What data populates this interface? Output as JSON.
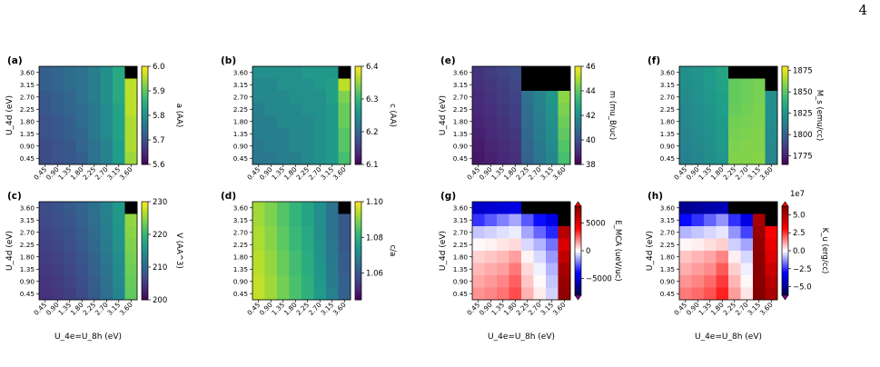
{
  "page_number": "4",
  "x_ticks": [
    "0.45",
    "0.90",
    "1.35",
    "1.80",
    "2.25",
    "2.70",
    "3.15",
    "3.60"
  ],
  "y_ticks": [
    "3.60",
    "3.15",
    "2.70",
    "2.25",
    "1.80",
    "1.35",
    "0.90",
    "0.45"
  ],
  "chart_data": [
    {
      "type": "heatmap",
      "panel": "(a)",
      "xlabel": "",
      "ylabel": "U_4d (eV)",
      "colorbar_label": "a (AA)",
      "colormap": "viridis",
      "vmin": 5.6,
      "vmax": 6.0,
      "colorbar_ticks": [
        "5.6",
        "5.7",
        "5.8",
        "5.9",
        "6.0"
      ],
      "values": [
        [
          5.72,
          5.73,
          5.74,
          5.75,
          5.77,
          5.8,
          5.84,
          null
        ],
        [
          5.72,
          5.73,
          5.74,
          5.75,
          5.77,
          5.8,
          5.84,
          5.96
        ],
        [
          5.71,
          5.72,
          5.73,
          5.75,
          5.77,
          5.8,
          5.84,
          5.96
        ],
        [
          5.71,
          5.72,
          5.73,
          5.74,
          5.76,
          5.79,
          5.83,
          5.96
        ],
        [
          5.7,
          5.71,
          5.72,
          5.74,
          5.76,
          5.79,
          5.83,
          5.95
        ],
        [
          5.7,
          5.71,
          5.72,
          5.73,
          5.76,
          5.79,
          5.83,
          5.95
        ],
        [
          5.69,
          5.7,
          5.71,
          5.73,
          5.75,
          5.78,
          5.82,
          5.95
        ],
        [
          5.69,
          5.7,
          5.71,
          5.72,
          5.75,
          5.78,
          5.82,
          5.94
        ]
      ]
    },
    {
      "type": "heatmap",
      "panel": "(b)",
      "xlabel": "",
      "ylabel": "",
      "colorbar_label": "c (AA)",
      "colormap": "viridis",
      "vmin": 6.1,
      "vmax": 6.4,
      "colorbar_ticks": [
        "6.1",
        "6.2",
        "6.3",
        "6.4"
      ],
      "values": [
        [
          6.25,
          6.25,
          6.25,
          6.25,
          6.26,
          6.26,
          6.26,
          null
        ],
        [
          6.24,
          6.24,
          6.25,
          6.25,
          6.25,
          6.26,
          6.27,
          6.37
        ],
        [
          6.24,
          6.24,
          6.24,
          6.25,
          6.25,
          6.25,
          6.27,
          6.34
        ],
        [
          6.23,
          6.24,
          6.24,
          6.24,
          6.25,
          6.25,
          6.26,
          6.33
        ],
        [
          6.23,
          6.23,
          6.24,
          6.24,
          6.24,
          6.25,
          6.26,
          6.33
        ],
        [
          6.23,
          6.23,
          6.23,
          6.24,
          6.24,
          6.25,
          6.26,
          6.32
        ],
        [
          6.22,
          6.23,
          6.23,
          6.24,
          6.24,
          6.25,
          6.26,
          6.32
        ],
        [
          6.22,
          6.22,
          6.23,
          6.23,
          6.24,
          6.25,
          6.26,
          6.31
        ]
      ]
    },
    {
      "type": "heatmap",
      "panel": "(e)",
      "xlabel": "",
      "ylabel": "U_4d (eV)",
      "colorbar_label": "m (mu_B/uc)",
      "colormap": "viridis",
      "vmin": 38,
      "vmax": 46,
      "colorbar_ticks": [
        "38",
        "40",
        "42",
        "44",
        "46"
      ],
      "values": [
        [
          39.2,
          39.4,
          39.6,
          39.8,
          null,
          null,
          null,
          null
        ],
        [
          39.1,
          39.3,
          39.5,
          39.7,
          null,
          null,
          null,
          null
        ],
        [
          39.0,
          39.2,
          39.4,
          39.6,
          41.0,
          41.6,
          42.2,
          44.6
        ],
        [
          38.9,
          39.1,
          39.3,
          39.5,
          40.9,
          41.5,
          42.1,
          44.4
        ],
        [
          38.8,
          39.0,
          39.2,
          39.4,
          40.8,
          41.4,
          42.0,
          44.2
        ],
        [
          38.7,
          38.9,
          39.1,
          39.3,
          40.7,
          41.3,
          41.9,
          44.0
        ],
        [
          38.6,
          38.8,
          39.0,
          39.2,
          40.6,
          41.2,
          41.8,
          43.8
        ],
        [
          38.5,
          38.7,
          38.9,
          39.1,
          40.5,
          41.1,
          41.7,
          43.6
        ]
      ]
    },
    {
      "type": "heatmap",
      "panel": "(f)",
      "xlabel": "",
      "ylabel": "",
      "colorbar_label": "M_s (emu/cc)",
      "colormap": "viridis",
      "vmin": 1765,
      "vmax": 1880,
      "colorbar_ticks": [
        "1775",
        "1800",
        "1825",
        "1850",
        "1875"
      ],
      "values": [
        [
          1822,
          1825,
          1828,
          1832,
          null,
          null,
          null,
          null
        ],
        [
          1821,
          1824,
          1827,
          1831,
          1852,
          1854,
          1856,
          null
        ],
        [
          1820,
          1823,
          1826,
          1830,
          1852,
          1854,
          1856,
          1822
        ],
        [
          1819,
          1822,
          1825,
          1829,
          1853,
          1855,
          1857,
          1822
        ],
        [
          1818,
          1821,
          1824,
          1828,
          1855,
          1856,
          1857,
          1821
        ],
        [
          1817,
          1820,
          1823,
          1827,
          1856,
          1857,
          1858,
          1820
        ],
        [
          1816,
          1819,
          1822,
          1826,
          1857,
          1858,
          1858,
          1819
        ],
        [
          1815,
          1818,
          1821,
          1825,
          1858,
          1858,
          1859,
          1818
        ]
      ]
    },
    {
      "type": "heatmap",
      "panel": "(c)",
      "xlabel": "U_4e=U_8h (eV)",
      "ylabel": "U_4d (eV)",
      "colorbar_label": "V (AA^3)",
      "colormap": "viridis",
      "vmin": 200,
      "vmax": 230,
      "colorbar_ticks": [
        "200",
        "210",
        "220",
        "230"
      ],
      "values": [
        [
          207.0,
          207.6,
          208.4,
          209.6,
          211.2,
          213.4,
          216.0,
          null
        ],
        [
          206.6,
          207.2,
          208.0,
          209.2,
          210.8,
          213.0,
          215.8,
          225.0
        ],
        [
          206.2,
          206.8,
          207.6,
          208.8,
          210.4,
          212.8,
          215.6,
          224.6
        ],
        [
          205.8,
          206.4,
          207.2,
          208.4,
          210.0,
          212.4,
          215.2,
          224.2
        ],
        [
          205.4,
          206.0,
          206.8,
          208.0,
          209.6,
          212.0,
          214.8,
          223.8
        ],
        [
          205.0,
          205.6,
          206.4,
          207.6,
          209.2,
          211.6,
          214.4,
          223.4
        ],
        [
          204.6,
          205.2,
          206.0,
          207.2,
          208.8,
          211.2,
          214.0,
          223.0
        ],
        [
          204.2,
          204.8,
          205.6,
          206.8,
          208.4,
          210.8,
          213.6,
          222.6
        ]
      ]
    },
    {
      "type": "heatmap",
      "panel": "(d)",
      "xlabel": "",
      "ylabel": "",
      "colorbar_label": "c/a",
      "colormap": "viridis",
      "vmin": 1.045,
      "vmax": 1.1,
      "colorbar_ticks": [
        "1.06",
        "1.08",
        "1.10"
      ],
      "values": [
        [
          1.092,
          1.089,
          1.085,
          1.081,
          1.077,
          1.072,
          1.066,
          null
        ],
        [
          1.092,
          1.089,
          1.085,
          1.081,
          1.077,
          1.072,
          1.066,
          1.06
        ],
        [
          1.093,
          1.09,
          1.086,
          1.082,
          1.078,
          1.072,
          1.066,
          1.06
        ],
        [
          1.093,
          1.09,
          1.086,
          1.082,
          1.078,
          1.073,
          1.067,
          1.06
        ],
        [
          1.094,
          1.091,
          1.087,
          1.083,
          1.079,
          1.073,
          1.067,
          1.061
        ],
        [
          1.094,
          1.091,
          1.087,
          1.083,
          1.079,
          1.074,
          1.068,
          1.061
        ],
        [
          1.095,
          1.092,
          1.088,
          1.084,
          1.08,
          1.074,
          1.068,
          1.062
        ],
        [
          1.095,
          1.092,
          1.088,
          1.084,
          1.08,
          1.075,
          1.069,
          1.062
        ]
      ]
    },
    {
      "type": "heatmap",
      "panel": "(g)",
      "xlabel": "U_4e=U_8h (eV)",
      "ylabel": "U_4d (eV)",
      "colorbar_label": "E_MCA (ueV/uc)",
      "colormap": "seismic",
      "vmin": -8000,
      "vmax": 8000,
      "colorbar_ticks": [
        "5000",
        "0",
        "−5000"
      ],
      "values": [
        [
          -5200,
          -5000,
          -4800,
          -4600,
          null,
          null,
          null,
          null
        ],
        [
          -3200,
          -2600,
          -2000,
          -1400,
          -2600,
          -3800,
          -4600,
          null
        ],
        [
          -900,
          -700,
          -500,
          -300,
          -1400,
          -2400,
          -3400,
          6200
        ],
        [
          100,
          200,
          400,
          600,
          -600,
          -1200,
          -2200,
          5200
        ],
        [
          700,
          900,
          1100,
          1500,
          200,
          -600,
          -1600,
          6000
        ],
        [
          1100,
          1300,
          1500,
          2100,
          600,
          -200,
          -1200,
          6800
        ],
        [
          1400,
          1600,
          1900,
          2500,
          900,
          100,
          -900,
          7200
        ],
        [
          1700,
          1900,
          2200,
          2800,
          1200,
          300,
          -700,
          7500
        ]
      ]
    },
    {
      "type": "heatmap",
      "panel": "(h)",
      "xlabel": "U_4e=U_8h (eV)",
      "ylabel": "U_4d (eV)",
      "colorbar_label": "K_u (erg/cc)",
      "colormap": "seismic",
      "colorbar_scale": "1e7",
      "vmin": -6.2,
      "vmax": 6.2,
      "colorbar_ticks": [
        "5.0",
        "2.5",
        "0.0",
        "−2.5",
        "−5.0"
      ],
      "values": [
        [
          -5.0,
          -4.8,
          -4.6,
          -4.4,
          null,
          null,
          null,
          null
        ],
        [
          -3.0,
          -2.5,
          -1.9,
          -1.3,
          -2.5,
          -3.6,
          5.2,
          null
        ],
        [
          -0.9,
          -0.7,
          -0.5,
          -0.3,
          -1.3,
          -2.3,
          5.6,
          3.2
        ],
        [
          0.1,
          0.2,
          0.4,
          0.6,
          -0.6,
          -1.1,
          5.8,
          3.6
        ],
        [
          0.7,
          0.9,
          1.1,
          1.5,
          0.2,
          -0.5,
          5.9,
          3.9
        ],
        [
          1.0,
          1.2,
          1.4,
          2.0,
          0.6,
          -0.2,
          6.0,
          4.4
        ],
        [
          1.3,
          1.5,
          1.8,
          2.4,
          0.9,
          0.1,
          6.0,
          4.8
        ],
        [
          1.6,
          1.8,
          2.1,
          2.7,
          1.2,
          0.3,
          6.1,
          5.2
        ]
      ]
    }
  ]
}
